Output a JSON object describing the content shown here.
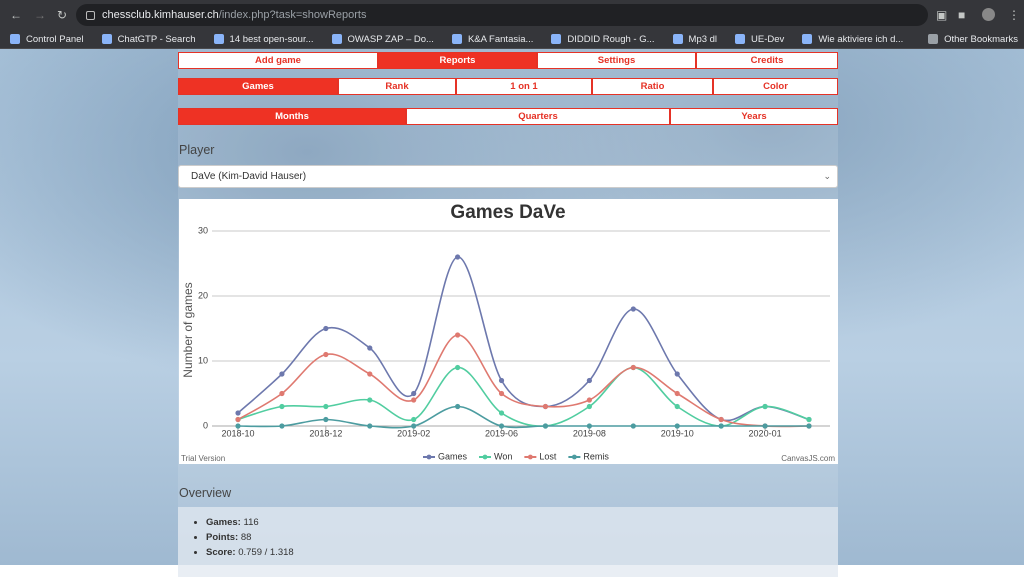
{
  "browser": {
    "url_host": "chessclub.kimhauser.ch",
    "url_path": "/index.php?task=showReports",
    "bookmarks": [
      "Control Panel",
      "ChatGTP - Search",
      "14 best open-sour...",
      "OWASP ZAP – Do...",
      "K&A Fantasia...",
      "DIDDID Rough - G...",
      "Mp3 dl",
      "UE-Dev",
      "Wie aktiviere ich d..."
    ],
    "other_bookmarks": "Other Bookmarks"
  },
  "nav": {
    "main": {
      "items": [
        "Add game",
        "Reports",
        "Settings",
        "Credits"
      ],
      "active": 1
    },
    "reports": {
      "items": [
        "Games",
        "Rank",
        "1 on 1",
        "Ratio",
        "Color"
      ],
      "active": 0
    },
    "periods": {
      "items": [
        "Months",
        "Quarters",
        "Years"
      ],
      "active": 0
    }
  },
  "player": {
    "label": "Player",
    "selected": "DaVe (Kim-David Hauser)"
  },
  "chart_data": {
    "type": "line",
    "title": "Games DaVe",
    "y_label": "Number of games",
    "categories": [
      "2018-10",
      null,
      "2018-12",
      null,
      "2019-02",
      null,
      "2019-06",
      null,
      "2019-08",
      null,
      "2019-10",
      null,
      "2020-01",
      null
    ],
    "series": [
      {
        "name": "Games",
        "color": "#6d78ad",
        "values": [
          2,
          8,
          15,
          12,
          5,
          26,
          7,
          3,
          7,
          18,
          8,
          1,
          3,
          1
        ]
      },
      {
        "name": "Won",
        "color": "#51cda0",
        "values": [
          1,
          3,
          3,
          4,
          1,
          9,
          2,
          0,
          3,
          9,
          3,
          0,
          3,
          1
        ]
      },
      {
        "name": "Lost",
        "color": "#df7970",
        "values": [
          1,
          5,
          11,
          8,
          4,
          14,
          5,
          3,
          4,
          9,
          5,
          1,
          0,
          0
        ]
      },
      {
        "name": "Remis",
        "color": "#4c9ca0",
        "values": [
          0,
          0,
          1,
          0,
          0,
          3,
          0,
          0,
          0,
          0,
          0,
          0,
          0,
          0
        ]
      }
    ],
    "ylim": [
      0,
      30
    ],
    "yticks": [
      0,
      10,
      20,
      30
    ],
    "grid": true,
    "watermark": "Trial Version",
    "credit": "CanvasJS.com"
  },
  "overview": {
    "title": "Overview",
    "items": [
      {
        "label": "Games:",
        "value": 116
      },
      {
        "label": "Points:",
        "value": 88
      },
      {
        "label": "Score:",
        "value": "0.759 / 1.318"
      }
    ]
  }
}
